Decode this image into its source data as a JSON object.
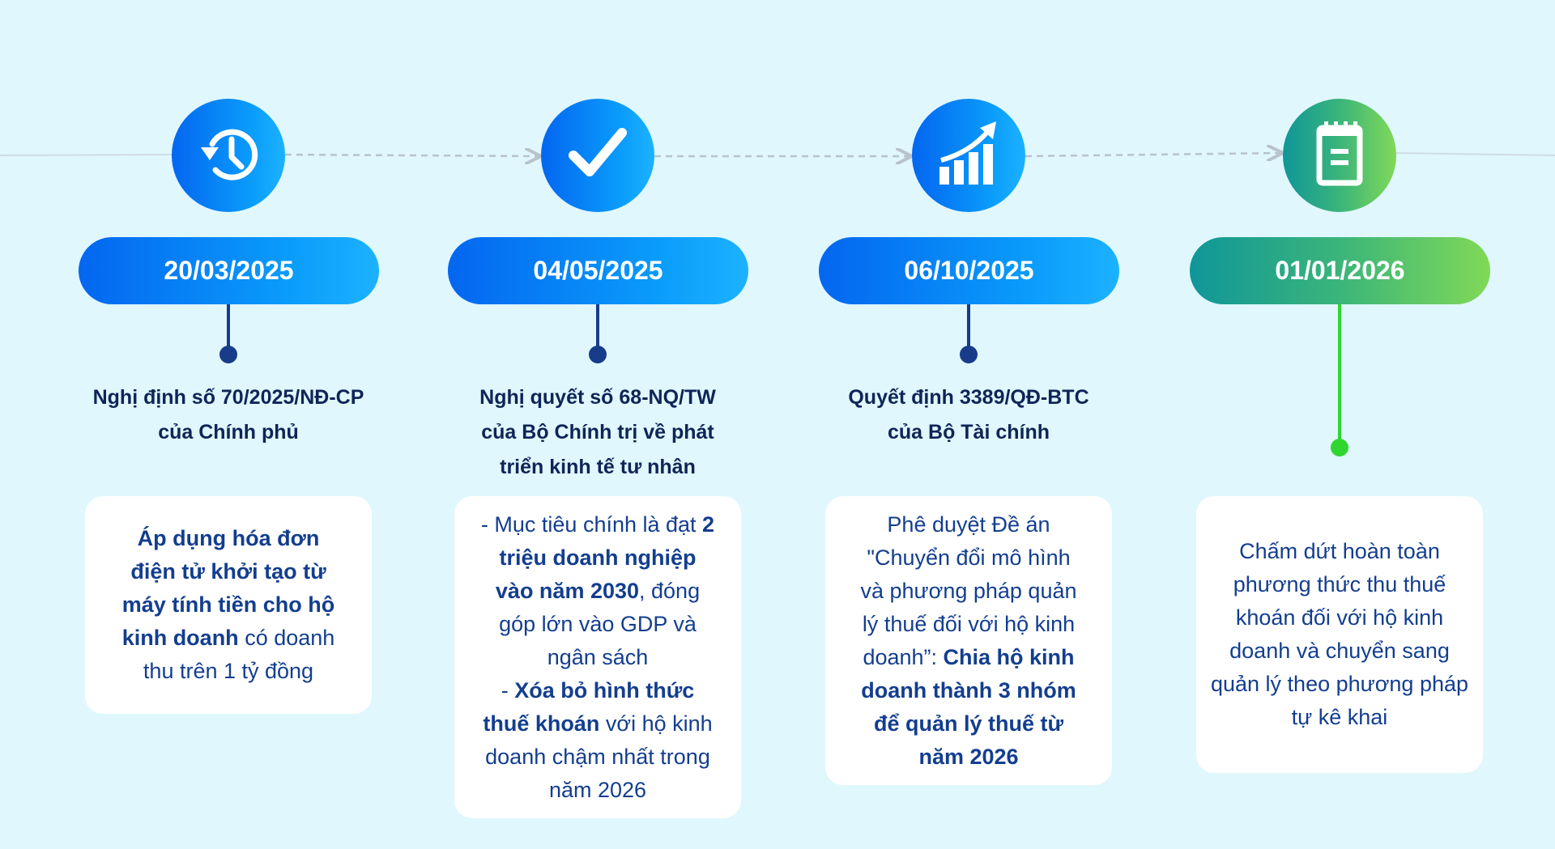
{
  "colors": {
    "background": "#e0f7fe",
    "blue_start": "#0466f0",
    "blue_end": "#1cb2ff",
    "green_start": "#0f9699",
    "green_end": "#80d957",
    "navy": "#163c8a",
    "green_dot": "#2fd62f",
    "text": "#133e8f"
  },
  "milestones": [
    {
      "icon": "history-clock-icon",
      "date": "20/03/2025",
      "theme": "blue",
      "title": [
        "Nghị định số 70/2025/NĐ-CP",
        "của Chính phủ"
      ],
      "lines": [
        [
          {
            "t": "Áp dụng hóa đơn",
            "b": true
          }
        ],
        [
          {
            "t": "điện tử khởi tạo từ",
            "b": true
          }
        ],
        [
          {
            "t": "máy tính tiền cho hộ",
            "b": true
          }
        ],
        [
          {
            "t": "kinh doanh",
            "b": true
          },
          {
            "t": " có doanh",
            "b": false
          }
        ],
        [
          {
            "t": "thu trên 1 tỷ đồng",
            "b": false
          }
        ]
      ]
    },
    {
      "icon": "checkmark-icon",
      "date": "04/05/2025",
      "theme": "blue",
      "title": [
        "Nghị quyết số 68-NQ/TW",
        "của Bộ Chính trị về phát",
        "triển kinh tế tư nhân"
      ],
      "lines": [
        [
          {
            "t": "- Mục tiêu chính là đạt ",
            "b": false
          },
          {
            "t": "2",
            "b": true
          }
        ],
        [
          {
            "t": "triệu doanh nghiệp",
            "b": true
          }
        ],
        [
          {
            "t": "vào năm 2030",
            "b": true
          },
          {
            "t": ", đóng",
            "b": false
          }
        ],
        [
          {
            "t": "góp lớn vào GDP và",
            "b": false
          }
        ],
        [
          {
            "t": "ngân sách",
            "b": false
          }
        ],
        [
          {
            "t": "- ",
            "b": false
          },
          {
            "t": "Xóa bỏ hình thức",
            "b": true
          }
        ],
        [
          {
            "t": "thuế khoán",
            "b": true
          },
          {
            "t": " với hộ kinh",
            "b": false
          }
        ],
        [
          {
            "t": "doanh chậm nhất trong",
            "b": false
          }
        ],
        [
          {
            "t": "năm 2026",
            "b": false
          }
        ]
      ]
    },
    {
      "icon": "growth-chart-icon",
      "date": "06/10/2025",
      "theme": "blue",
      "title": [
        "Quyết định 3389/QĐ-BTC",
        "của Bộ Tài chính"
      ],
      "lines": [
        [
          {
            "t": "Phê duyệt Đề án",
            "b": false
          }
        ],
        [
          {
            "t": "\"Chuyển đổi mô hình",
            "b": false
          }
        ],
        [
          {
            "t": "và phương pháp quản",
            "b": false
          }
        ],
        [
          {
            "t": "lý thuế đối với hộ kinh",
            "b": false
          }
        ],
        [
          {
            "t": "doanh”: ",
            "b": false
          },
          {
            "t": "Chia hộ kinh",
            "b": true
          }
        ],
        [
          {
            "t": "doanh thành 3 nhóm",
            "b": true
          }
        ],
        [
          {
            "t": "để quản lý thuế từ",
            "b": true
          }
        ],
        [
          {
            "t": "năm 2026",
            "b": true
          }
        ]
      ]
    },
    {
      "icon": "notepad-icon",
      "date": "01/01/2026",
      "theme": "green",
      "title": [],
      "lines": [
        [
          {
            "t": "Chấm dứt hoàn toàn",
            "b": false
          }
        ],
        [
          {
            "t": "phương thức thu thuế",
            "b": false
          }
        ],
        [
          {
            "t": "khoán đối với hộ kinh",
            "b": false
          }
        ],
        [
          {
            "t": "doanh và chuyển sang",
            "b": false
          }
        ],
        [
          {
            "t": "quản lý theo phương pháp",
            "b": false
          }
        ],
        [
          {
            "t": "tự kê khai",
            "b": false
          }
        ]
      ]
    }
  ]
}
